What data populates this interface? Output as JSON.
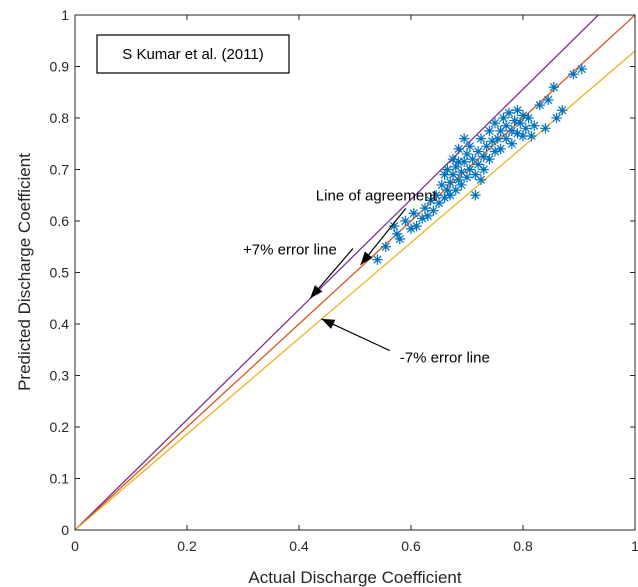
{
  "chart_data": {
    "type": "scatter",
    "xlabel": "Actual Discharge Coefficient",
    "ylabel": "Predicted Discharge Coefficient",
    "xlim": [
      0,
      1
    ],
    "ylim": [
      0,
      1
    ],
    "xticks": [
      "0",
      "0.2",
      "0.4",
      "0.6",
      "0.8",
      "1"
    ],
    "yticks": [
      "0",
      "0.1",
      "0.2",
      "0.3",
      "0.4",
      "0.5",
      "0.6",
      "0.7",
      "0.8",
      "0.9",
      "1"
    ],
    "grid": false,
    "legend": {
      "text": "S Kumar et al. (2011)",
      "placement": "top-left"
    },
    "lines": [
      {
        "label": "Line of agreement",
        "slope": 1.0,
        "color": "#D95319"
      },
      {
        "label": "+7% error line",
        "slope": 1.07,
        "color": "#7E2F8E"
      },
      {
        "label": "-7% error line",
        "slope": 0.93,
        "color": "#EDB120"
      }
    ],
    "annotations": [
      {
        "text": "Line of agreement",
        "x": 0.43,
        "y": 0.64,
        "target_x": 0.51,
        "target_y": 0.515
      },
      {
        "text": "+7% error line",
        "x": 0.3,
        "y": 0.535,
        "target_x": 0.42,
        "target_y": 0.45
      },
      {
        "text": "-7% error line",
        "x": 0.58,
        "y": 0.325,
        "target_x": 0.44,
        "target_y": 0.41
      }
    ],
    "marker_color": "#0072BD",
    "points": [
      [
        0.54,
        0.525
      ],
      [
        0.555,
        0.55
      ],
      [
        0.575,
        0.575
      ],
      [
        0.57,
        0.59
      ],
      [
        0.58,
        0.565
      ],
      [
        0.59,
        0.6
      ],
      [
        0.6,
        0.585
      ],
      [
        0.605,
        0.615
      ],
      [
        0.61,
        0.59
      ],
      [
        0.62,
        0.605
      ],
      [
        0.625,
        0.625
      ],
      [
        0.63,
        0.61
      ],
      [
        0.635,
        0.64
      ],
      [
        0.64,
        0.62
      ],
      [
        0.645,
        0.65
      ],
      [
        0.65,
        0.635
      ],
      [
        0.655,
        0.67
      ],
      [
        0.66,
        0.645
      ],
      [
        0.66,
        0.69
      ],
      [
        0.665,
        0.66
      ],
      [
        0.665,
        0.7
      ],
      [
        0.67,
        0.675
      ],
      [
        0.67,
        0.65
      ],
      [
        0.675,
        0.72
      ],
      [
        0.675,
        0.69
      ],
      [
        0.68,
        0.66
      ],
      [
        0.68,
        0.705
      ],
      [
        0.685,
        0.68
      ],
      [
        0.685,
        0.74
      ],
      [
        0.69,
        0.695
      ],
      [
        0.69,
        0.67
      ],
      [
        0.695,
        0.715
      ],
      [
        0.695,
        0.76
      ],
      [
        0.7,
        0.685
      ],
      [
        0.7,
        0.73
      ],
      [
        0.705,
        0.7
      ],
      [
        0.705,
        0.745
      ],
      [
        0.71,
        0.72
      ],
      [
        0.715,
        0.65
      ],
      [
        0.715,
        0.69
      ],
      [
        0.72,
        0.735
      ],
      [
        0.72,
        0.71
      ],
      [
        0.725,
        0.76
      ],
      [
        0.73,
        0.725
      ],
      [
        0.73,
        0.7
      ],
      [
        0.735,
        0.745
      ],
      [
        0.74,
        0.775
      ],
      [
        0.74,
        0.72
      ],
      [
        0.745,
        0.755
      ],
      [
        0.75,
        0.735
      ],
      [
        0.75,
        0.79
      ],
      [
        0.755,
        0.76
      ],
      [
        0.76,
        0.74
      ],
      [
        0.76,
        0.775
      ],
      [
        0.765,
        0.8
      ],
      [
        0.77,
        0.76
      ],
      [
        0.77,
        0.785
      ],
      [
        0.775,
        0.81
      ],
      [
        0.78,
        0.775
      ],
      [
        0.78,
        0.75
      ],
      [
        0.785,
        0.795
      ],
      [
        0.79,
        0.815
      ],
      [
        0.79,
        0.77
      ],
      [
        0.795,
        0.79
      ],
      [
        0.8,
        0.805
      ],
      [
        0.805,
        0.78
      ],
      [
        0.81,
        0.8
      ],
      [
        0.815,
        0.765
      ],
      [
        0.82,
        0.785
      ],
      [
        0.83,
        0.825
      ],
      [
        0.84,
        0.78
      ],
      [
        0.845,
        0.835
      ],
      [
        0.855,
        0.86
      ],
      [
        0.86,
        0.8
      ],
      [
        0.87,
        0.815
      ],
      [
        0.89,
        0.885
      ],
      [
        0.905,
        0.895
      ],
      [
        0.8,
        0.765
      ],
      [
        0.725,
        0.68
      ],
      [
        0.685,
        0.715
      ]
    ]
  }
}
